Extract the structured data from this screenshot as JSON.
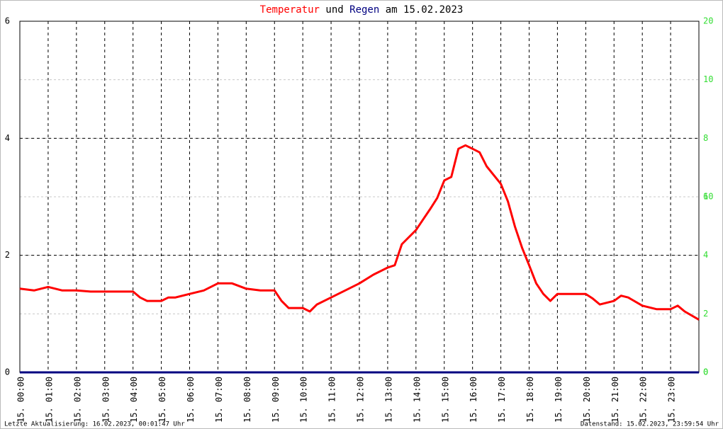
{
  "chart_data": {
    "type": "line",
    "title": [
      "Temperatur",
      "und",
      "Regen",
      "am 15.02.2023"
    ],
    "xlim": [
      0,
      24
    ],
    "xticks": [
      {
        "value": 0,
        "label": "15. 00:00"
      },
      {
        "value": 1,
        "label": "15. 01:00"
      },
      {
        "value": 2,
        "label": "15. 02:00"
      },
      {
        "value": 3,
        "label": "15. 03:00"
      },
      {
        "value": 4,
        "label": "15. 04:00"
      },
      {
        "value": 5,
        "label": "15. 05:00"
      },
      {
        "value": 6,
        "label": "15. 06:00"
      },
      {
        "value": 7,
        "label": "15. 07:00"
      },
      {
        "value": 8,
        "label": "15. 08:00"
      },
      {
        "value": 9,
        "label": "15. 09:00"
      },
      {
        "value": 10,
        "label": "15. 10:00"
      },
      {
        "value": 11,
        "label": "15. 11:00"
      },
      {
        "value": 12,
        "label": "15. 12:00"
      },
      {
        "value": 13,
        "label": "15. 13:00"
      },
      {
        "value": 14,
        "label": "15. 14:00"
      },
      {
        "value": 15,
        "label": "15. 15:00"
      },
      {
        "value": 16,
        "label": "15. 16:00"
      },
      {
        "value": 17,
        "label": "15. 17:00"
      },
      {
        "value": 18,
        "label": "15. 18:00"
      },
      {
        "value": 19,
        "label": "15. 19:00"
      },
      {
        "value": 20,
        "label": "15. 20:00"
      },
      {
        "value": 21,
        "label": "15. 21:00"
      },
      {
        "value": 22,
        "label": "15. 22:00"
      },
      {
        "value": 23,
        "label": "15. 23:00"
      }
    ],
    "ylim": [
      0,
      6
    ],
    "yticks": [
      0,
      2,
      4,
      6
    ],
    "y2lim": [
      0,
      12
    ],
    "y2ticks": [
      0,
      2,
      4,
      6,
      8,
      10
    ],
    "y3lim": [
      0,
      20
    ],
    "y3ticks": [
      0,
      10,
      20
    ],
    "y2color": "#33dd33",
    "grid": true,
    "series": [
      {
        "name": "Temperatur",
        "color": "#ff0000",
        "x": [
          0,
          0.5,
          1,
          1.5,
          2,
          2.5,
          3,
          3.5,
          4,
          4.25,
          4.5,
          5,
          5.25,
          5.5,
          6,
          6.5,
          7,
          7.5,
          8,
          8.5,
          9,
          9.25,
          9.5,
          10,
          10.25,
          10.5,
          11,
          11.5,
          12,
          12.5,
          13,
          13.25,
          13.5,
          14,
          14.25,
          14.5,
          14.75,
          15,
          15.25,
          15.5,
          15.75,
          16,
          16.25,
          16.5,
          17,
          17.25,
          17.5,
          17.75,
          18,
          18.25,
          18.5,
          18.75,
          19,
          19.5,
          20,
          20.25,
          20.5,
          21,
          21.25,
          21.5,
          22,
          22.5,
          23,
          23.25,
          23.5,
          24
        ],
        "values": [
          1.43,
          1.4,
          1.46,
          1.4,
          1.4,
          1.38,
          1.38,
          1.38,
          1.38,
          1.28,
          1.22,
          1.22,
          1.28,
          1.28,
          1.34,
          1.4,
          1.52,
          1.52,
          1.43,
          1.4,
          1.4,
          1.22,
          1.1,
          1.1,
          1.04,
          1.16,
          1.28,
          1.4,
          1.52,
          1.67,
          1.79,
          1.83,
          2.19,
          2.43,
          2.61,
          2.79,
          2.98,
          3.28,
          3.34,
          3.82,
          3.88,
          3.82,
          3.76,
          3.52,
          3.22,
          2.92,
          2.49,
          2.13,
          1.83,
          1.52,
          1.34,
          1.22,
          1.34,
          1.34,
          1.34,
          1.26,
          1.16,
          1.22,
          1.31,
          1.28,
          1.14,
          1.08,
          1.08,
          1.14,
          1.04,
          0.9
        ]
      },
      {
        "name": "Regen",
        "color": "#000080",
        "x": [
          0,
          24
        ],
        "values": [
          0,
          0
        ]
      }
    ],
    "footer_left": "Letzte Aktualisierung: 16.02.2023, 00:01:47 Uhr",
    "footer_right": "Datenstand: 15.02.2023, 23:59:54 Uhr"
  }
}
